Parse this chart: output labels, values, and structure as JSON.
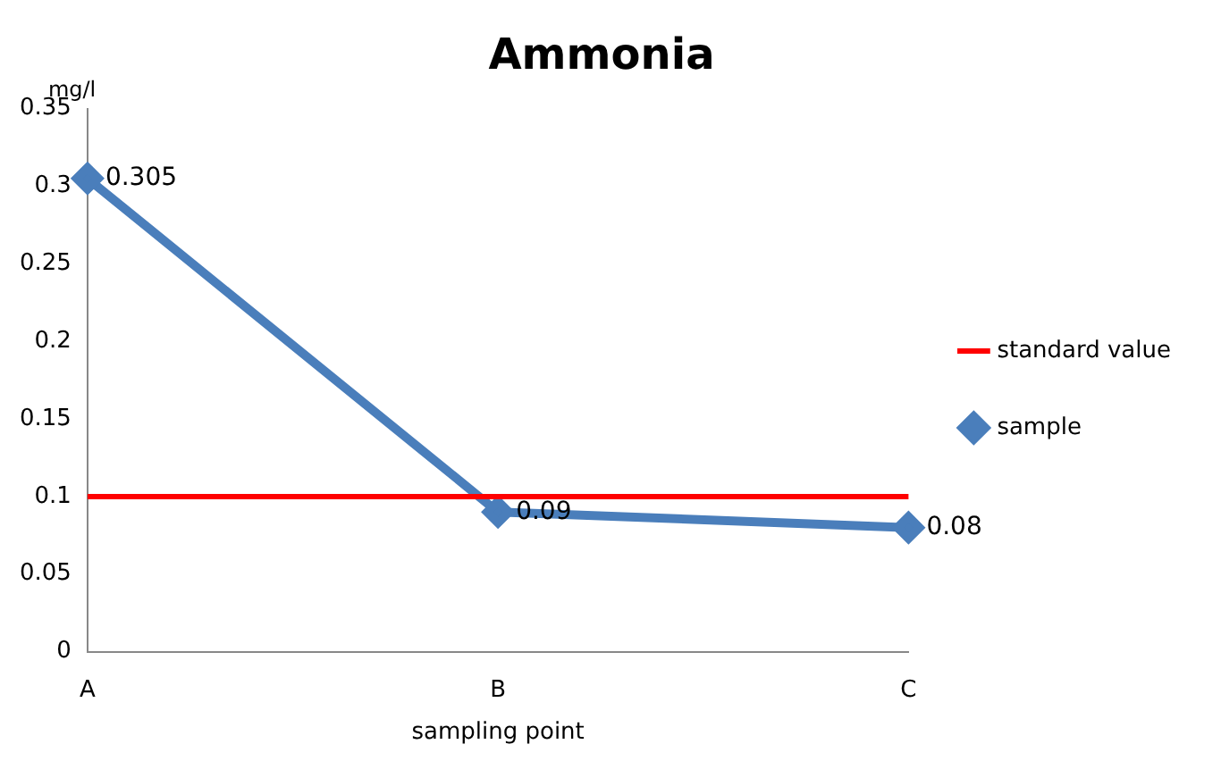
{
  "chart_data": {
    "type": "line",
    "title": "Ammonia",
    "xlabel": "sampling point",
    "ylabel": "mg/l",
    "categories": [
      "A",
      "B",
      "C"
    ],
    "series": [
      {
        "name": "sample",
        "color": "#4a7ebb",
        "values": [
          0.305,
          0.09,
          0.08
        ]
      }
    ],
    "ylim": [
      0,
      0.35
    ],
    "yticks": [
      0,
      0.05,
      0.1,
      0.15,
      0.2,
      0.25,
      0.3,
      0.35
    ],
    "ref_lines": [
      {
        "axis": "y",
        "value": 0.1,
        "label": "standard value",
        "color": "#ff0000",
        "line_style": "solid"
      }
    ],
    "marker": "diamond",
    "line_style": "solid",
    "data_labels": true,
    "grid": false,
    "legend": "right"
  }
}
